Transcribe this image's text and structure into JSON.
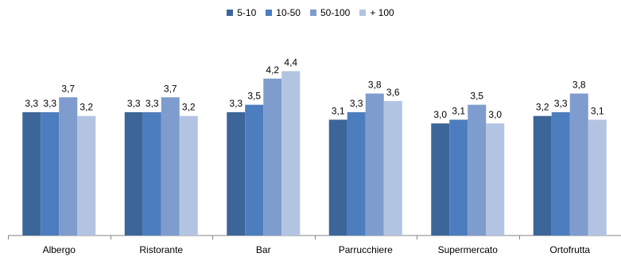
{
  "chart_data": {
    "type": "bar",
    "categories": [
      "Albergo",
      "Ristorante",
      "Bar",
      "Parrucchiere",
      "Supermercato",
      "Ortofrutta"
    ],
    "series": [
      {
        "name": "5-10",
        "color": "#3c6699",
        "values": [
          3.3,
          3.3,
          3.3,
          3.1,
          3.0,
          3.2
        ],
        "labels": [
          "3,3",
          "3,3",
          "3,3",
          "3,1",
          "3,0",
          "3,2"
        ]
      },
      {
        "name": "10-50",
        "color": "#4c7dbe",
        "values": [
          3.3,
          3.3,
          3.5,
          3.3,
          3.1,
          3.3
        ],
        "labels": [
          "3,3",
          "3,3",
          "3,5",
          "3,3",
          "3,1",
          "3,3"
        ]
      },
      {
        "name": "50-100",
        "color": "#7e9ccd",
        "values": [
          3.7,
          3.7,
          4.2,
          3.8,
          3.5,
          3.8
        ],
        "labels": [
          "3,7",
          "3,7",
          "4,2",
          "3,8",
          "3,5",
          "3,8"
        ]
      },
      {
        "name": "+ 100",
        "color": "#b3c4e2",
        "values": [
          3.2,
          3.2,
          4.4,
          3.6,
          3.0,
          3.1
        ],
        "labels": [
          "3,2",
          "3,2",
          "4,4",
          "3,6",
          "3,0",
          "3,1"
        ]
      }
    ],
    "ylim": [
      0,
      5.75
    ],
    "legend_position": "top-center",
    "grid": false
  }
}
